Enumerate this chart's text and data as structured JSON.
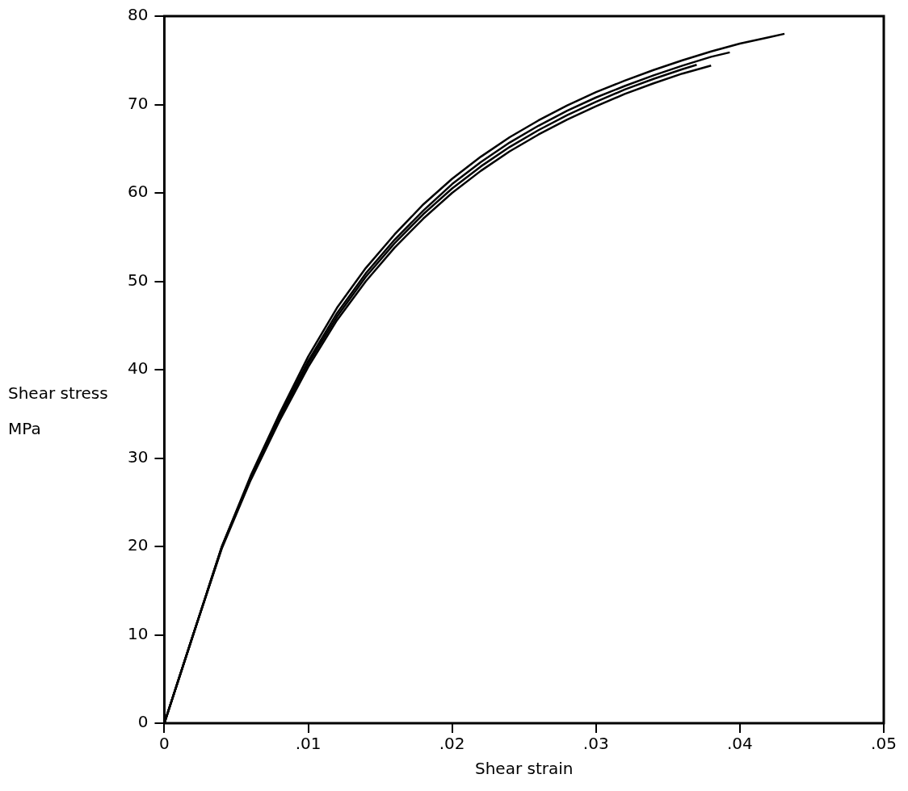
{
  "chart_data": {
    "type": "line",
    "xlabel": "Shear strain",
    "ylabel": "Shear stress MPa",
    "xlim": [
      0,
      0.05
    ],
    "ylim": [
      0,
      80
    ],
    "xticks": [
      0,
      {
        "value": 0.01,
        "label": ".01"
      },
      {
        "value": 0.02,
        "label": ".02"
      },
      {
        "value": 0.03,
        "label": ".03"
      },
      {
        "value": 0.04,
        "label": ".04"
      },
      {
        "value": 0.05,
        "label": ".05"
      }
    ],
    "yticks": [
      0,
      10,
      20,
      30,
      40,
      50,
      60,
      70,
      80
    ],
    "grid": false,
    "legend": false,
    "marker": "none",
    "line_style": "solid",
    "series": [
      {
        "color": "#000000",
        "x": [
          0,
          0.002,
          0.004,
          0.006,
          0.008,
          0.01,
          0.012,
          0.014,
          0.016,
          0.018,
          0.02,
          0.022,
          0.024,
          0.026,
          0.028,
          0.03,
          0.032,
          0.034,
          0.036,
          0.038,
          0.04,
          0.042,
          0.0431
        ],
        "values": [
          0,
          10,
          20,
          28,
          35,
          41.5,
          47,
          51.5,
          55.3,
          58.7,
          61.6,
          64.1,
          66.3,
          68.2,
          69.9,
          71.4,
          72.7,
          73.9,
          75,
          76,
          76.9,
          77.6,
          78
        ]
      },
      {
        "color": "#000000",
        "x": [
          0,
          0.002,
          0.004,
          0.006,
          0.008,
          0.01,
          0.012,
          0.014,
          0.016,
          0.018,
          0.02,
          0.022,
          0.024,
          0.026,
          0.028,
          0.03,
          0.032,
          0.034,
          0.036,
          0.038,
          0.0393
        ],
        "values": [
          0,
          10,
          20,
          27.8,
          34.7,
          41,
          46.4,
          50.9,
          54.7,
          58,
          61,
          63.5,
          65.7,
          67.6,
          69.3,
          70.8,
          72.1,
          73.3,
          74.4,
          75.4,
          75.9
        ]
      },
      {
        "color": "#000000",
        "x": [
          0,
          0.002,
          0.004,
          0.006,
          0.008,
          0.01,
          0.012,
          0.014,
          0.016,
          0.018,
          0.02,
          0.022,
          0.024,
          0.026,
          0.028,
          0.03,
          0.032,
          0.034,
          0.036,
          0.038
        ],
        "values": [
          0,
          10,
          19.8,
          27.5,
          34.2,
          40.3,
          45.6,
          50,
          53.8,
          57.1,
          60,
          62.5,
          64.7,
          66.6,
          68.3,
          69.8,
          71.2,
          72.4,
          73.5,
          74.4
        ]
      },
      {
        "color": "#000000",
        "x": [
          0,
          0.002,
          0.004,
          0.006,
          0.008,
          0.01,
          0.012,
          0.014,
          0.016,
          0.018,
          0.02,
          0.022,
          0.024,
          0.026,
          0.028,
          0.03,
          0.032,
          0.034,
          0.036,
          0.037
        ],
        "values": [
          0,
          10,
          19.9,
          27.7,
          34.5,
          40.7,
          46,
          50.5,
          54.3,
          57.6,
          60.5,
          63,
          65.2,
          67.1,
          68.8,
          70.3,
          71.7,
          72.9,
          74,
          74.5
        ]
      }
    ]
  }
}
